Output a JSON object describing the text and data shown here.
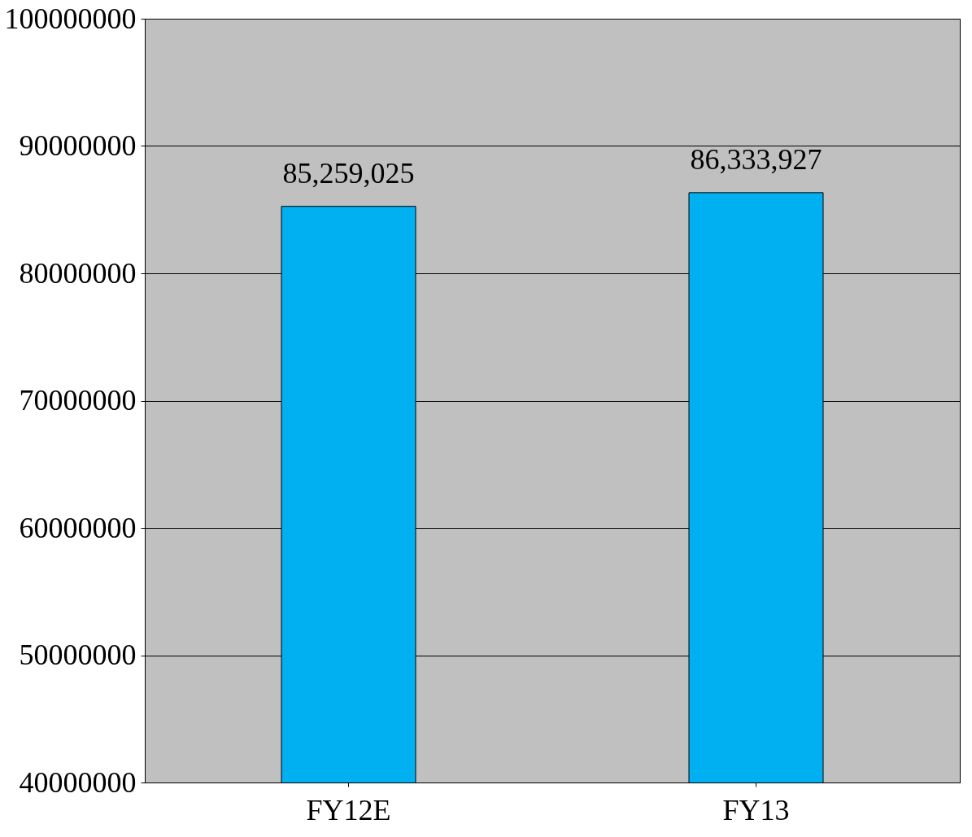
{
  "chart_data": {
    "type": "bar",
    "categories": [
      "FY12E",
      "FY13"
    ],
    "values": [
      85259025,
      86333927
    ],
    "color": "#00b0f0",
    "ylim": [
      40000000,
      100000000
    ],
    "yticks": [
      40000000,
      50000000,
      60000000,
      70000000,
      80000000,
      90000000,
      100000000
    ],
    "grid": "y",
    "value_labels": [
      "85,259,025",
      "86,333,927"
    ]
  }
}
